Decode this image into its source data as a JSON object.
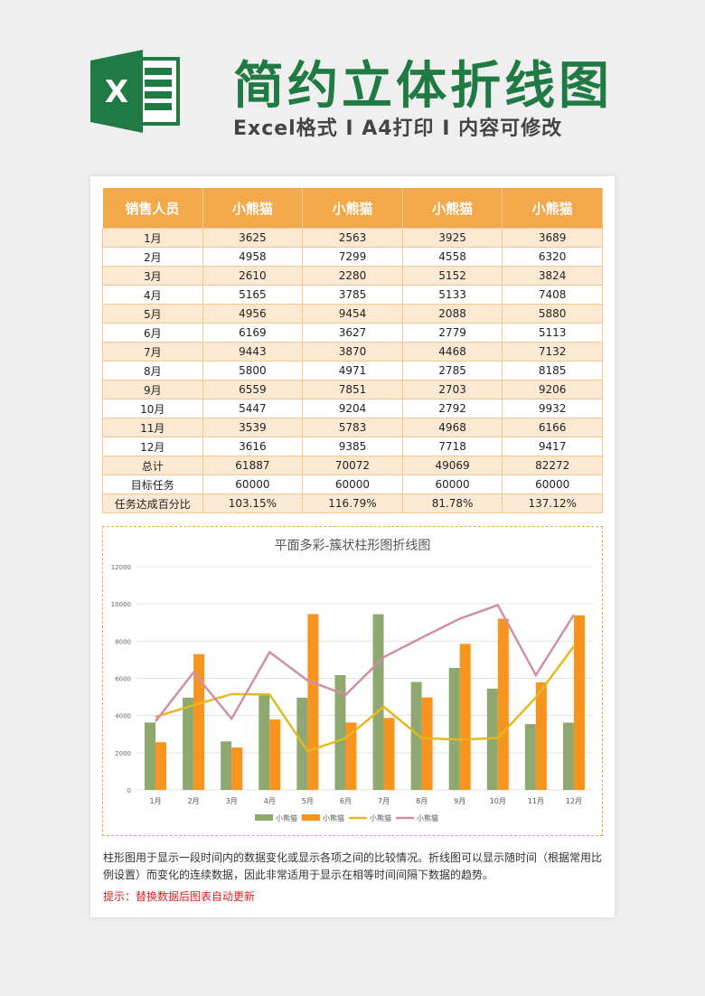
{
  "header": {
    "title": "简约立体折线图",
    "subtitle": "Excel格式 I A4打印 I 内容可修改",
    "logo_letter": "X"
  },
  "table": {
    "headers": [
      "销售人员",
      "小熊猫",
      "小熊猫",
      "小熊猫",
      "小熊猫"
    ],
    "rows": [
      [
        "1月",
        "3625",
        "2563",
        "3925",
        "3689"
      ],
      [
        "2月",
        "4958",
        "7299",
        "4558",
        "6320"
      ],
      [
        "3月",
        "2610",
        "2280",
        "5152",
        "3824"
      ],
      [
        "4月",
        "5165",
        "3785",
        "5133",
        "7408"
      ],
      [
        "5月",
        "4956",
        "9454",
        "2088",
        "5880"
      ],
      [
        "6月",
        "6169",
        "3627",
        "2779",
        "5113"
      ],
      [
        "7月",
        "9443",
        "3870",
        "4468",
        "7132"
      ],
      [
        "8月",
        "5800",
        "4971",
        "2785",
        "8185"
      ],
      [
        "9月",
        "6559",
        "7851",
        "2703",
        "9206"
      ],
      [
        "10月",
        "5447",
        "9204",
        "2792",
        "9932"
      ],
      [
        "11月",
        "3539",
        "5783",
        "4968",
        "6166"
      ],
      [
        "12月",
        "3616",
        "9385",
        "7718",
        "9417"
      ],
      [
        "总计",
        "61887",
        "70072",
        "49069",
        "82272"
      ],
      [
        "目标任务",
        "60000",
        "60000",
        "60000",
        "60000"
      ],
      [
        "任务达成百分比",
        "103.15%",
        "116.79%",
        "81.78%",
        "137.12%"
      ]
    ]
  },
  "chart_data": {
    "type": "bar+line",
    "title": "平面多彩-簇状柱形图折线图",
    "categories": [
      "1月",
      "2月",
      "3月",
      "4月",
      "5月",
      "6月",
      "7月",
      "8月",
      "9月",
      "10月",
      "11月",
      "12月"
    ],
    "ylim": [
      0,
      12000
    ],
    "yticks": [
      0,
      2000,
      4000,
      6000,
      8000,
      10000,
      12000
    ],
    "grid": true,
    "legend_position": "bottom",
    "series": [
      {
        "name": "小熊猫",
        "kind": "bar",
        "color": "#8ea86f",
        "values": [
          3625,
          4958,
          2610,
          5165,
          4956,
          6169,
          9443,
          5800,
          6559,
          5447,
          3539,
          3616
        ]
      },
      {
        "name": "小熊猫",
        "kind": "bar",
        "color": "#f7941d",
        "values": [
          2563,
          7299,
          2280,
          3785,
          9454,
          3627,
          3870,
          4971,
          7851,
          9204,
          5783,
          9385
        ]
      },
      {
        "name": "小熊猫",
        "kind": "line",
        "color": "#e6b820",
        "values": [
          3925,
          4558,
          5152,
          5133,
          2088,
          2779,
          4468,
          2785,
          2703,
          2792,
          4968,
          7718
        ]
      },
      {
        "name": "小熊猫",
        "kind": "line",
        "color": "#cf8fa8",
        "values": [
          3689,
          6320,
          3824,
          7408,
          5880,
          5113,
          7132,
          8185,
          9206,
          9932,
          6166,
          9417
        ]
      }
    ]
  },
  "footer": {
    "description": "柱形图用于显示一段时间内的数据变化或显示各项之间的比较情况。折线图可以显示随时间（根据常用比例设置）而变化的连续数据，因此非常适用于显示在相等时间间隔下数据的趋势。",
    "hint": "提示：替换数据后图表自动更新"
  }
}
